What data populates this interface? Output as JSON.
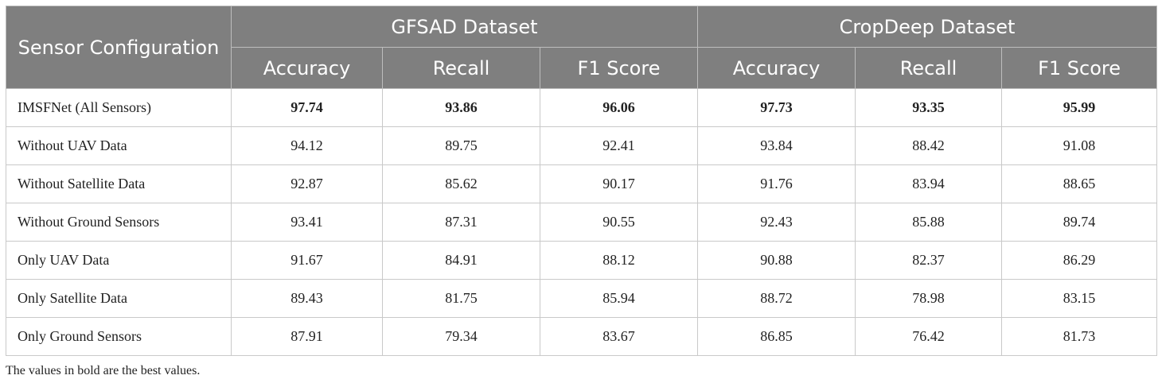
{
  "header": {
    "config_label": "Sensor Configuration",
    "groups": [
      "GFSAD Dataset",
      "CropDeep Dataset"
    ],
    "metrics": [
      "Accuracy",
      "Recall",
      "F1 Score",
      "Accuracy",
      "Recall",
      "F1 Score"
    ]
  },
  "rows": [
    {
      "name": "IMSFNet (All Sensors)",
      "values": [
        "97.74",
        "93.86",
        "96.06",
        "97.73",
        "93.35",
        "95.99"
      ]
    },
    {
      "name": "Without UAV Data",
      "values": [
        "94.12",
        "89.75",
        "92.41",
        "93.84",
        "88.42",
        "91.08"
      ]
    },
    {
      "name": "Without Satellite Data",
      "values": [
        "92.87",
        "85.62",
        "90.17",
        "91.76",
        "83.94",
        "88.65"
      ]
    },
    {
      "name": "Without Ground Sensors",
      "values": [
        "93.41",
        "87.31",
        "90.55",
        "92.43",
        "85.88",
        "89.74"
      ]
    },
    {
      "name": "Only UAV Data",
      "values": [
        "91.67",
        "84.91",
        "88.12",
        "90.88",
        "82.37",
        "86.29"
      ]
    },
    {
      "name": "Only Satellite Data",
      "values": [
        "89.43",
        "81.75",
        "85.94",
        "88.72",
        "78.98",
        "83.15"
      ]
    },
    {
      "name": "Only Ground Sensors",
      "values": [
        "87.91",
        "79.34",
        "83.67",
        "86.85",
        "76.42",
        "81.73"
      ]
    }
  ],
  "footnote": "The values in bold are the best values.",
  "colors": {
    "header_bg": "#7f7f7f",
    "header_text": "#ffffff",
    "border": "#c9c9c9"
  }
}
